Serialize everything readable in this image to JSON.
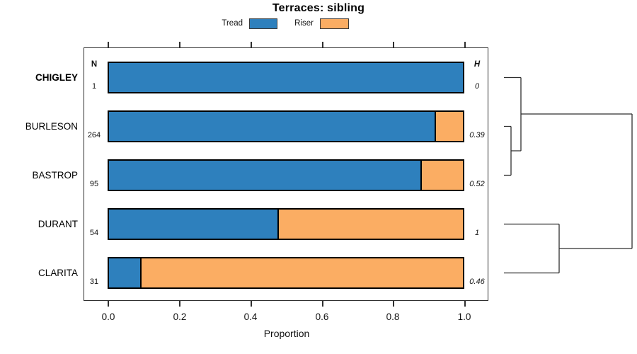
{
  "title": "Terraces: sibling",
  "legend": {
    "items": [
      {
        "label": "Tread",
        "color": "#2E80BD"
      },
      {
        "label": "Riser",
        "color": "#FBAD63"
      }
    ]
  },
  "table": {
    "n_header": "N",
    "h_header": "H"
  },
  "axis": {
    "label": "Proportion",
    "ticks": [
      "0.0",
      "0.2",
      "0.4",
      "0.6",
      "0.8",
      "1.0"
    ]
  },
  "rows": [
    {
      "label": "CHIGLEY",
      "n": "1",
      "h": "0"
    },
    {
      "label": "BURLESON",
      "n": "264",
      "h": "0.39"
    },
    {
      "label": "BASTROP",
      "n": "95",
      "h": "0.52"
    },
    {
      "label": "DURANT",
      "n": "54",
      "h": "1"
    },
    {
      "label": "CLARITA",
      "n": "31",
      "h": "0.46"
    }
  ],
  "chart_data": {
    "type": "bar",
    "orientation": "horizontal",
    "stacked": true,
    "title": "Terraces: sibling",
    "xlabel": "Proportion",
    "xlim": [
      0,
      1
    ],
    "x_ticks": [
      0.0,
      0.2,
      0.4,
      0.6,
      0.8,
      1.0
    ],
    "grid": false,
    "legend_position": "top",
    "categories": [
      "CHIGLEY",
      "BURLESON",
      "BASTROP",
      "DURANT",
      "CLARITA"
    ],
    "emphasized_category": "CHIGLEY",
    "N": [
      1,
      264,
      95,
      54,
      31
    ],
    "H": [
      0,
      0.39,
      0.52,
      1,
      0.46
    ],
    "series": [
      {
        "name": "Tread",
        "color": "#2E80BD",
        "values": [
          1.0,
          0.92,
          0.88,
          0.48,
          0.095
        ]
      },
      {
        "name": "Riser",
        "color": "#FBAD63",
        "values": [
          0.0,
          0.08,
          0.12,
          0.52,
          0.905
        ]
      }
    ],
    "dendrogram": {
      "orientation": "right",
      "leaf_order": [
        "CHIGLEY",
        "BURLESON",
        "BASTROP",
        "DURANT",
        "CLARITA"
      ],
      "merges": [
        [
          "BURLESON",
          "BASTROP"
        ],
        [
          "CHIGLEY",
          [
            "BURLESON",
            "BASTROP"
          ]
        ],
        [
          "DURANT",
          "CLARITA"
        ],
        [
          [
            "CHIGLEY",
            "BURLESON",
            "BASTROP"
          ],
          [
            "DURANT",
            "CLARITA"
          ]
        ]
      ]
    }
  }
}
